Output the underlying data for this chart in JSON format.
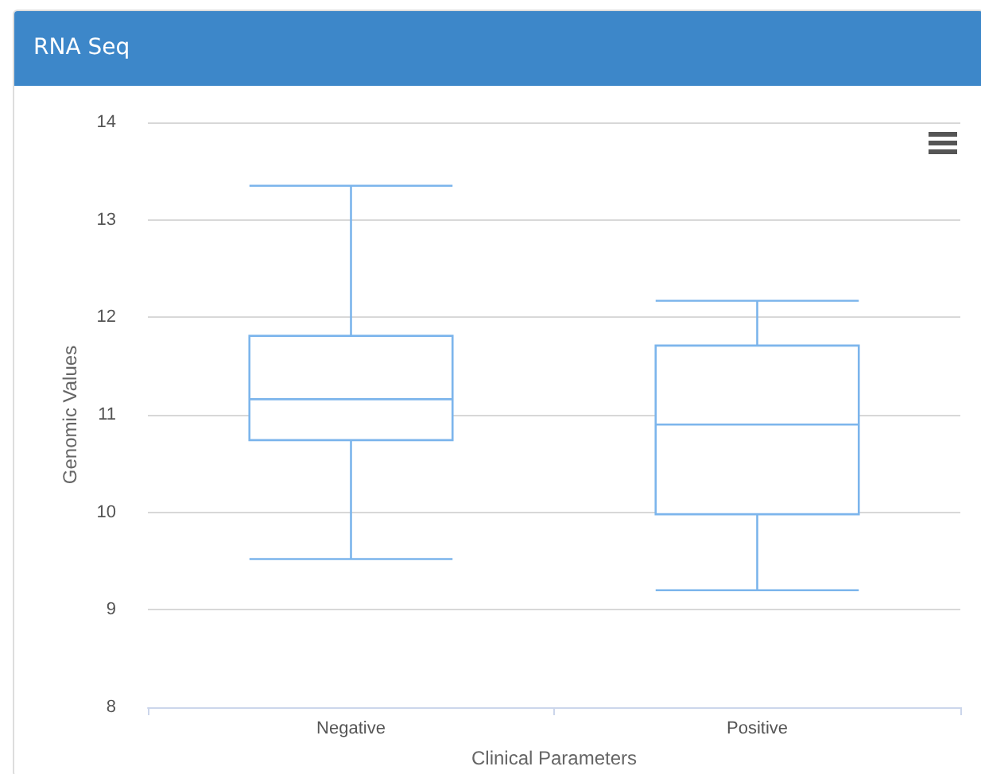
{
  "chart_data": {
    "type": "box",
    "title": "RNA Seq",
    "xlabel": "Clinical Parameters",
    "ylabel": "Genomic Values",
    "categories": [
      "Negative",
      "Positive"
    ],
    "boxes": [
      {
        "low": 9.52,
        "q1": 10.74,
        "median": 11.16,
        "q3": 11.81,
        "high": 13.35
      },
      {
        "low": 9.2,
        "q1": 9.98,
        "median": 10.9,
        "q3": 11.71,
        "high": 12.17
      }
    ],
    "color": "#7cb5ec",
    "ylim": [
      8,
      14
    ],
    "yticks": [
      8,
      9,
      10,
      11,
      12,
      13,
      14
    ],
    "grid": "y"
  }
}
